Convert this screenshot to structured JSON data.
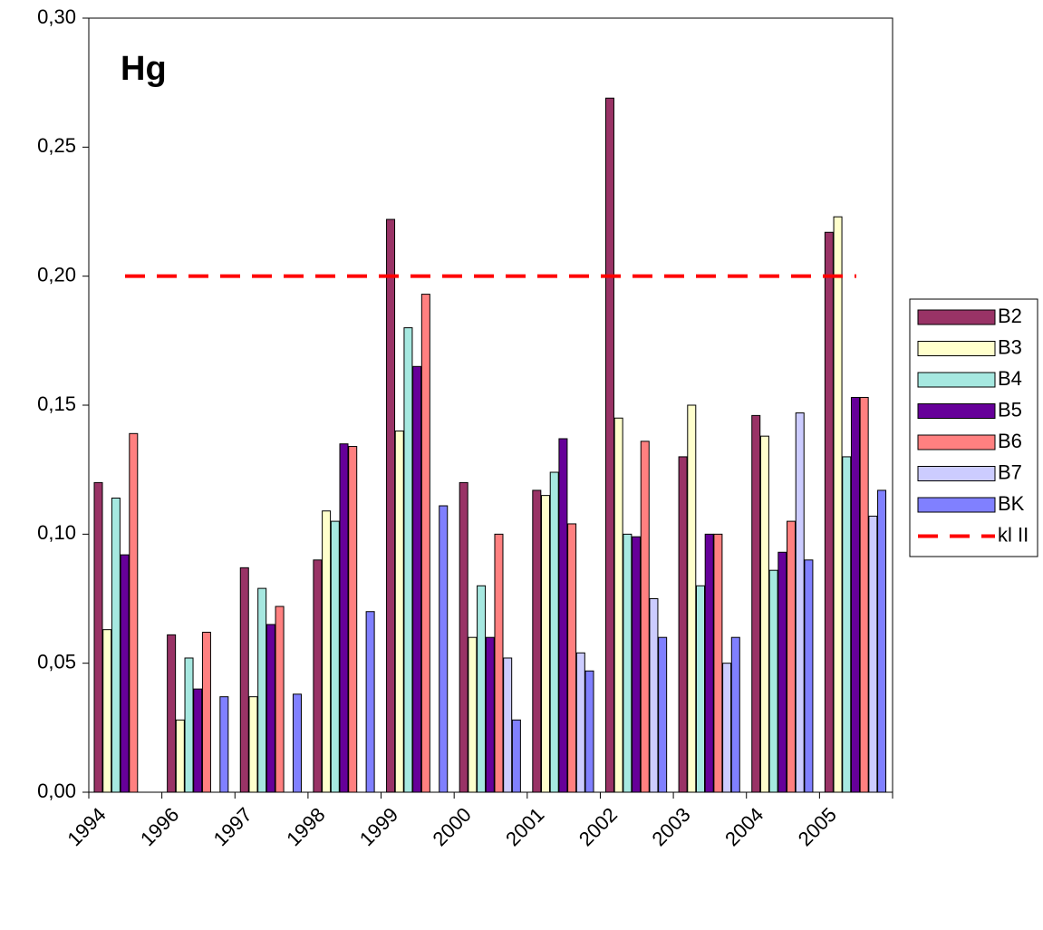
{
  "chart_data": {
    "type": "bar",
    "title": "Hg",
    "categories": [
      "1994",
      "1996",
      "1997",
      "1998",
      "1999",
      "2000",
      "2001",
      "2002",
      "2003",
      "2004",
      "2005"
    ],
    "series": [
      {
        "name": "B2",
        "color": "#993366",
        "values": [
          0.12,
          0.061,
          0.087,
          0.09,
          0.222,
          0.12,
          0.117,
          0.269,
          0.13,
          0.146,
          0.217
        ]
      },
      {
        "name": "B3",
        "color": "#ffffcc",
        "values": [
          0.063,
          0.028,
          0.037,
          0.109,
          0.14,
          0.06,
          0.115,
          0.145,
          0.15,
          0.138,
          0.223
        ]
      },
      {
        "name": "B4",
        "color": "#a6e8e0",
        "values": [
          0.114,
          0.052,
          0.079,
          0.105,
          0.18,
          0.08,
          0.124,
          0.1,
          0.08,
          0.086,
          0.13
        ]
      },
      {
        "name": "B5",
        "color": "#660099",
        "values": [
          0.092,
          0.04,
          0.065,
          0.135,
          0.165,
          0.06,
          0.137,
          0.099,
          0.1,
          0.093,
          0.153
        ]
      },
      {
        "name": "B6",
        "color": "#ff8080",
        "values": [
          0.139,
          0.062,
          0.072,
          0.134,
          0.193,
          0.1,
          0.104,
          0.136,
          0.1,
          0.105,
          0.153
        ]
      },
      {
        "name": "B7",
        "color": "#ccccff",
        "values": [
          null,
          null,
          null,
          null,
          null,
          0.052,
          0.054,
          0.075,
          0.05,
          0.147,
          0.107
        ]
      },
      {
        "name": "BK",
        "color": "#8080ff",
        "values": [
          null,
          0.037,
          0.038,
          0.07,
          0.111,
          0.028,
          0.047,
          0.06,
          0.06,
          0.09,
          0.117
        ]
      }
    ],
    "threshold": {
      "name": "kl II",
      "value": 0.2,
      "color": "#ff0000"
    },
    "ylim": [
      0,
      0.3
    ],
    "yticks": [
      {
        "value": 0,
        "label": "0,00"
      },
      {
        "value": 0.05,
        "label": "0,05"
      },
      {
        "value": 0.1,
        "label": "0,10"
      },
      {
        "value": 0.15,
        "label": "0,15"
      },
      {
        "value": 0.2,
        "label": "0,20"
      },
      {
        "value": 0.25,
        "label": "0,25"
      },
      {
        "value": 0.3,
        "label": "0,30"
      }
    ],
    "grid": false
  }
}
